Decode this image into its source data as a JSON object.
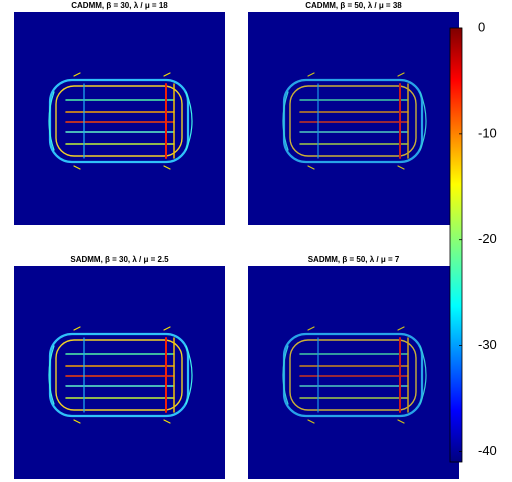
{
  "chart_data": [
    {
      "type": "image",
      "title": "CADMM, β = 30, λ / μ = 18"
    },
    {
      "type": "image",
      "title": "CADMM, β = 50, λ / μ = 38"
    },
    {
      "type": "image",
      "title": "SADMM, β = 30, λ / μ = 2.5"
    },
    {
      "type": "image",
      "title": "SADMM, β = 50, λ / μ = 7"
    },
    {
      "type": "colorbar",
      "ylim": [
        -41,
        0
      ],
      "yticks": [
        0,
        -10,
        -20,
        -30,
        -40
      ]
    }
  ]
}
